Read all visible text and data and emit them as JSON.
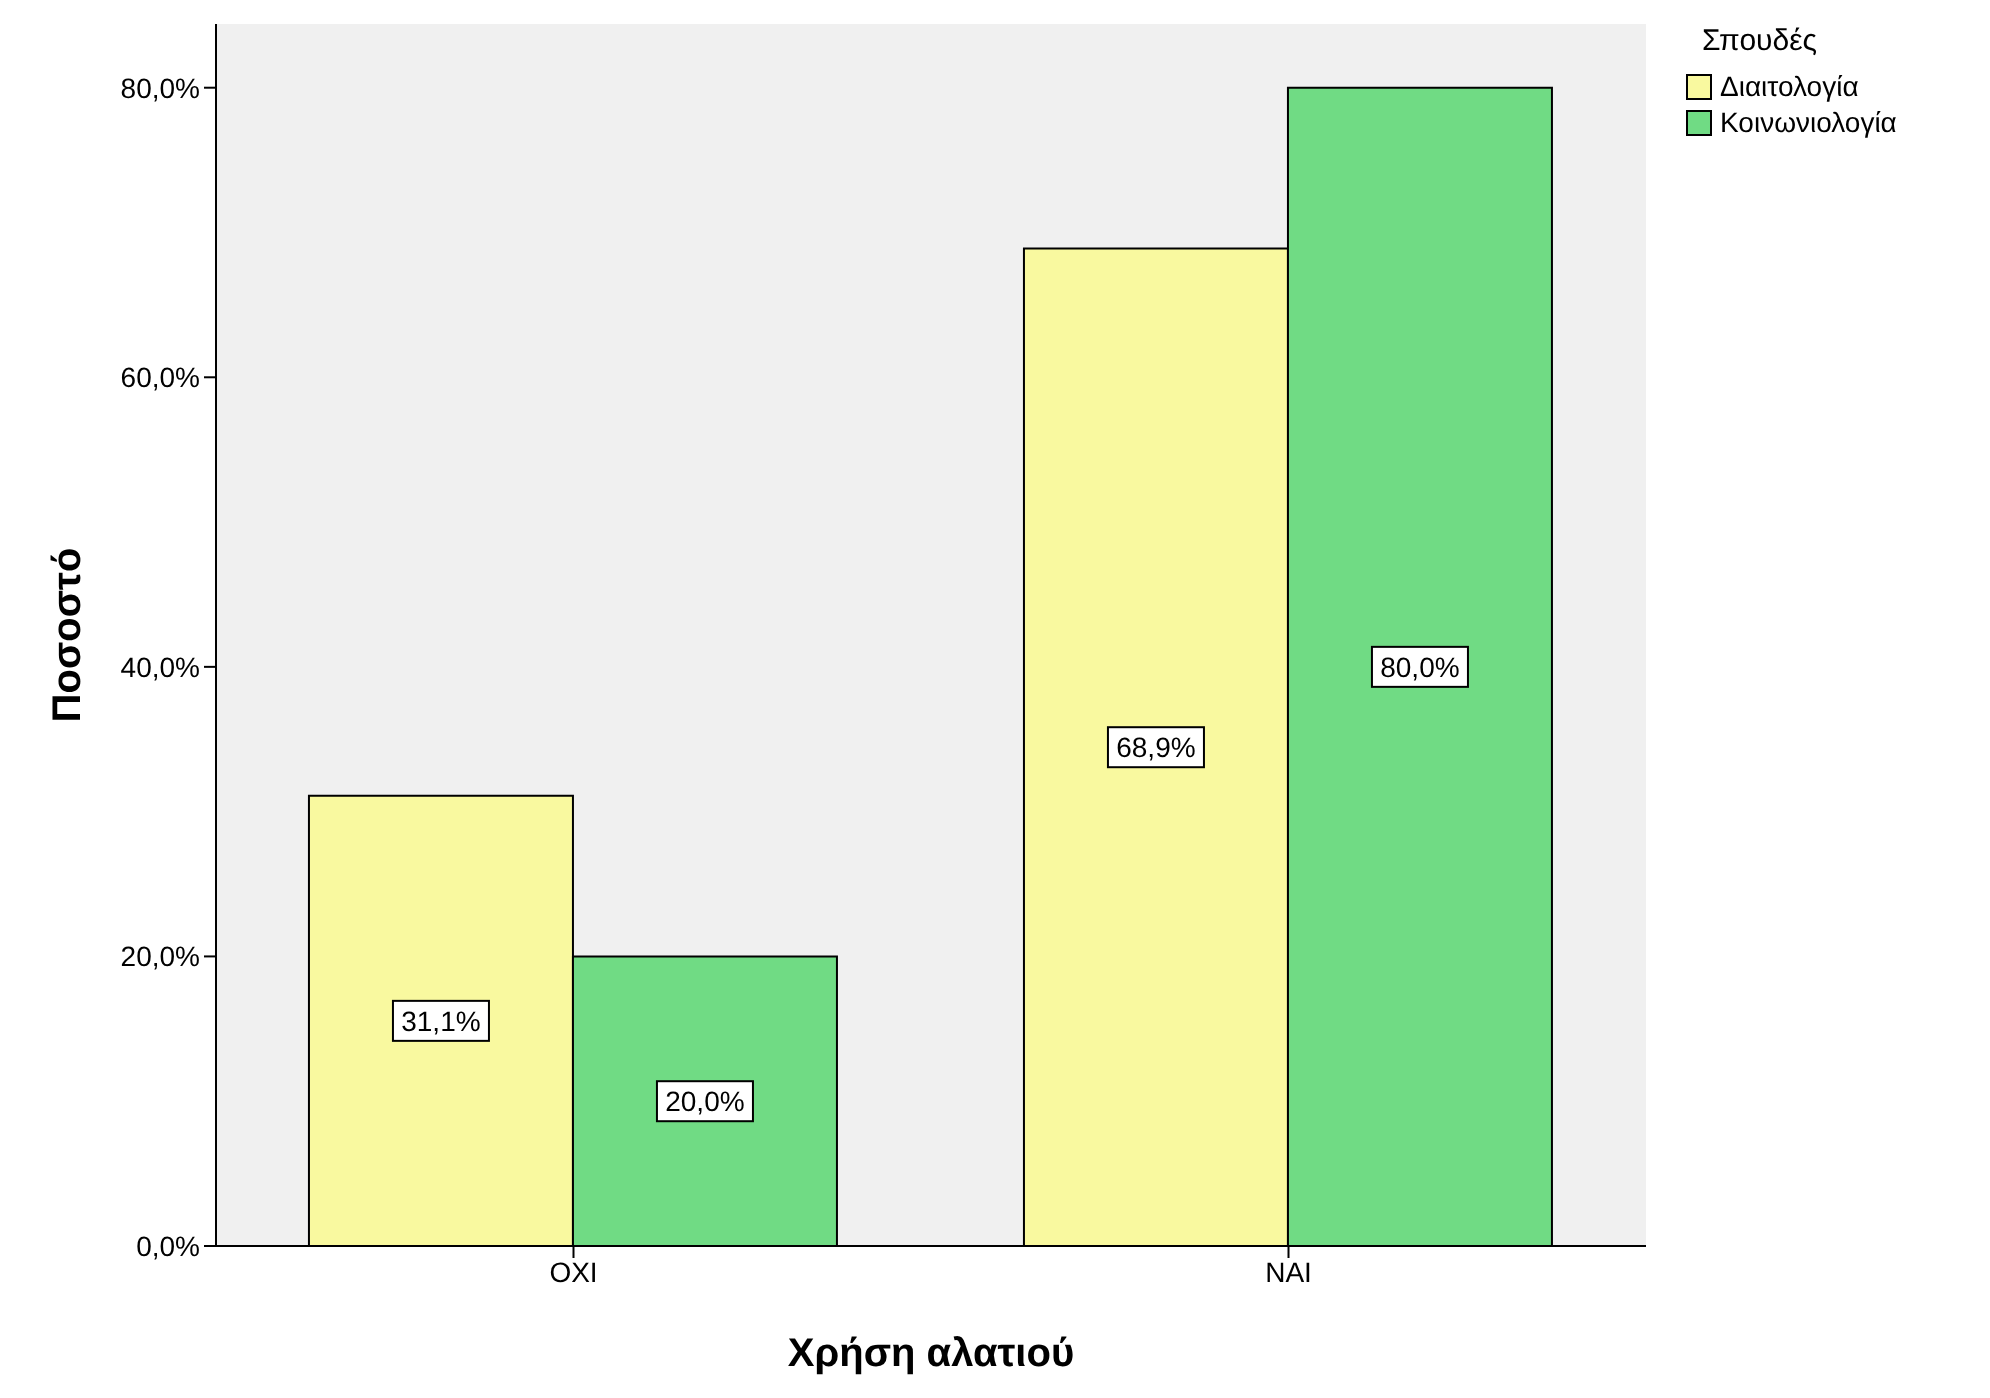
{
  "chart_data": {
    "type": "bar",
    "xlabel": "Χρήση αλατιού",
    "ylabel": "Ποσοστό",
    "legend_title": "Σπουδές",
    "categories": [
      "ΟΧΙ",
      "ΝΑΙ"
    ],
    "series": [
      {
        "name": "Διαιτολογία",
        "color": "#f9f99f",
        "values": [
          31.1,
          68.9
        ],
        "value_labels": [
          "31,1%",
          "68,9%"
        ]
      },
      {
        "name": "Κοινωνιολογία",
        "color": "#70db84",
        "values": [
          20.0,
          80.0
        ],
        "value_labels": [
          "20,0%",
          "80,0%"
        ]
      }
    ],
    "ylim": [
      0,
      84.4
    ],
    "yticks": [
      {
        "value": 0,
        "label": "0,0%"
      },
      {
        "value": 20,
        "label": "20,0%"
      },
      {
        "value": 40,
        "label": "40,0%"
      },
      {
        "value": 60,
        "label": "60,0%"
      },
      {
        "value": 80,
        "label": "80,0%"
      }
    ],
    "grid": false,
    "legend": "top right"
  }
}
